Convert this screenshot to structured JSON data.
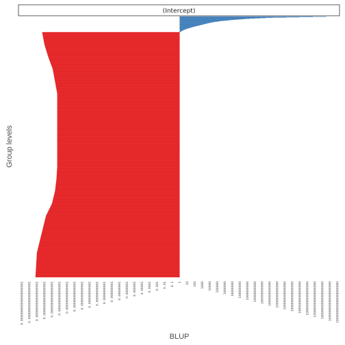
{
  "colors": {
    "positive": "#3a7ab8",
    "negative": "#e31a1c",
    "zero_line": "#9a9a9a",
    "strip_border": "#333333",
    "background": "#ffffff"
  },
  "chart_data": {
    "type": "bar",
    "orientation": "horizontal",
    "panel_title": "(Intercept)",
    "xlabel": "BLUP",
    "ylabel": "Group levels",
    "x_scale": "log10",
    "x_tick_labels": [
      "0.000000000000000000001",
      "0.00000000000000000001",
      "0.0000000000000000001",
      "0.000000000000000001",
      "0.00000000000000001",
      "0.0000000000000001",
      "0.000000000000001",
      "0.00000000000001",
      "0.0000000000001",
      "0.000000000001",
      "0.00000000001",
      "0.0000000001",
      "0.000000001",
      "0.00000001",
      "0.0000001",
      "0.000001",
      "0.00001",
      "0.0001",
      "0.001",
      "0.01",
      "0.1",
      "1",
      "10",
      "100",
      "1000",
      "10000",
      "100000",
      "1000000",
      "10000000",
      "100000000",
      "1000000000",
      "10000000000",
      "100000000000",
      "1000000000000",
      "10000000000000",
      "100000000000000",
      "1000000000000000",
      "10000000000000000",
      "100000000000000000",
      "1000000000000000000",
      "10000000000000000000",
      "100000000000000000000",
      "1000000000000000000000"
    ],
    "zero_reference": "1",
    "grid": false,
    "legend": "none",
    "n_levels_approx": 1000,
    "series": [
      {
        "sign": "positive",
        "approx_count": 60,
        "blup_log10_profile_sorted_desc": [
          19.5,
          12.0,
          9.0,
          7.0,
          5.5,
          4.5,
          3.8,
          3.2,
          2.6,
          2.0,
          1.5,
          1.0,
          0.6,
          0.3,
          0.1
        ]
      },
      {
        "sign": "negative",
        "approx_count": 940,
        "blup_log10_profile_sorted_asc": [
          -18.3,
          -18.0,
          -17.5,
          -16.9,
          -16.6,
          -16.3,
          -16.3,
          -16.3,
          -16.3,
          -16.3,
          -16.3,
          -16.3,
          -16.4,
          -16.6,
          -17.0,
          -17.8,
          -18.2,
          -18.6,
          -19.0,
          -19.1,
          -19.2
        ]
      }
    ]
  }
}
